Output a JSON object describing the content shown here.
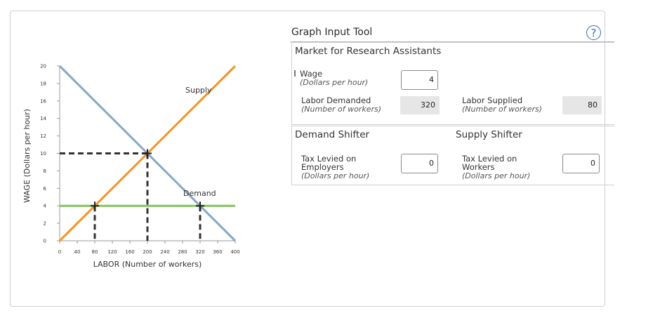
{
  "graph": {
    "ylabel": "WAGE (Dollars per hour)",
    "xlabel": "LABOR (Number of workers)",
    "x_ticks": [
      "0",
      "40",
      "80",
      "120",
      "160",
      "200",
      "240",
      "280",
      "320",
      "360",
      "400"
    ],
    "y_ticks": [
      "0",
      "2",
      "4",
      "6",
      "8",
      "10",
      "12",
      "14",
      "16",
      "18",
      "20"
    ],
    "supply_label": "Supply",
    "demand_label": "Demand",
    "colors": {
      "supply": "#f7931e",
      "demand": "#85a8c9",
      "wage_line": "#82c45c",
      "guides": "#333333"
    },
    "supply_line": [
      [
        0,
        0
      ],
      [
        400,
        20
      ]
    ],
    "demand_line": [
      [
        0,
        20
      ],
      [
        400,
        0
      ]
    ],
    "wage_line_level": 4,
    "equilibrium": {
      "labor": 200,
      "wage": 10
    },
    "labor_supplied_point": {
      "labor": 80,
      "wage": 4
    },
    "labor_demanded_point": {
      "labor": 320,
      "wage": 4
    },
    "xlim": [
      0,
      400
    ],
    "ylim": [
      0,
      20
    ]
  },
  "panel": {
    "title": "Graph Input Tool",
    "help_glyph": "?",
    "market_title": "Market for Research Assistants",
    "wage_label": "Wage",
    "wage_sub": "(Dollars per hour)",
    "wage_value": "4",
    "labor_demanded_label": "Labor Demanded",
    "labor_demanded_sub": "(Number of workers)",
    "labor_demanded_value": "320",
    "labor_supplied_label": "Labor Supplied",
    "labor_supplied_sub": "(Number of workers)",
    "labor_supplied_value": "80",
    "demand_shifter": "Demand Shifter",
    "supply_shifter": "Supply Shifter",
    "tax_employers_line1": "Tax Levied on",
    "tax_employers_line2": "Employers",
    "tax_employers_sub": "(Dollars per hour)",
    "tax_employers_value": "0",
    "tax_workers_line1": "Tax Levied on",
    "tax_workers_line2": "Workers",
    "tax_workers_sub": "(Dollars per hour)",
    "tax_workers_value": "0"
  }
}
